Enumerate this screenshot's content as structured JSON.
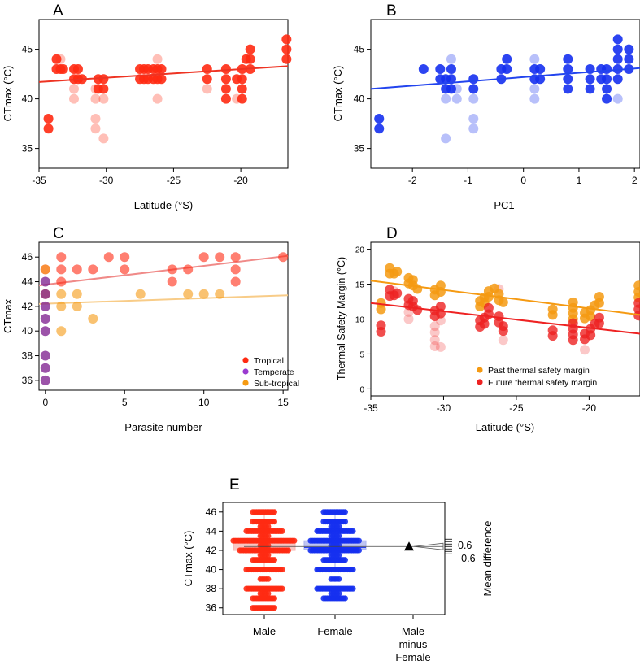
{
  "colors": {
    "tropical": "#ff2a12",
    "temperate": "#7b1a8c",
    "subtropical": "#f59a12",
    "blue": "#1530f0",
    "red_line": "#ee3322",
    "blue_line": "#2244ee",
    "past_margin": "#f59a12",
    "future_margin": "#ee2222",
    "male_box": "#f6b3ad",
    "female_box": "#aab2ee"
  },
  "chart_data": [
    {
      "panel": "A",
      "type": "scatter",
      "xlabel": "Latitude (°S)",
      "ylabel": "CTmax (°C)",
      "xlim": [
        -35,
        -16.5
      ],
      "ylim": [
        33,
        48
      ],
      "xticks": [
        -35,
        -30,
        -25,
        -20
      ],
      "yticks": [
        35,
        40,
        45
      ],
      "trend": [
        [
          -35,
          41.7
        ],
        [
          -16.5,
          43.3
        ]
      ],
      "points_solid": [
        [
          -34.3,
          38
        ],
        [
          -34.3,
          37
        ],
        [
          -33.7,
          44
        ],
        [
          -33.7,
          43
        ],
        [
          -33.4,
          43
        ],
        [
          -33.2,
          43
        ],
        [
          -32.4,
          43
        ],
        [
          -32.4,
          42
        ],
        [
          -32.1,
          43
        ],
        [
          -32.1,
          42
        ],
        [
          -31.8,
          42
        ],
        [
          -30.6,
          42
        ],
        [
          -30.6,
          41
        ],
        [
          -30.2,
          42
        ],
        [
          -30.2,
          41
        ],
        [
          -27.5,
          43
        ],
        [
          -27.5,
          42
        ],
        [
          -27.2,
          43
        ],
        [
          -27.2,
          42
        ],
        [
          -26.9,
          43
        ],
        [
          -26.9,
          42
        ],
        [
          -26.5,
          43
        ],
        [
          -26.5,
          42
        ],
        [
          -26.2,
          43
        ],
        [
          -26.2,
          42
        ],
        [
          -25.9,
          43
        ],
        [
          -25.9,
          42
        ],
        [
          -22.5,
          43
        ],
        [
          -22.5,
          42
        ],
        [
          -21.1,
          43
        ],
        [
          -21.1,
          42
        ],
        [
          -21.1,
          41
        ],
        [
          -21.1,
          40
        ],
        [
          -20.3,
          42
        ],
        [
          -19.9,
          43
        ],
        [
          -19.9,
          42
        ],
        [
          -19.9,
          41
        ],
        [
          -19.9,
          40
        ],
        [
          -19.6,
          44
        ],
        [
          -19.3,
          45
        ],
        [
          -19.3,
          44
        ],
        [
          -19.3,
          43
        ],
        [
          -16.6,
          46
        ],
        [
          -16.6,
          45
        ],
        [
          -16.6,
          44
        ]
      ],
      "points_faded": [
        [
          -33.4,
          44
        ],
        [
          -32.4,
          41
        ],
        [
          -32.4,
          40
        ],
        [
          -30.8,
          41
        ],
        [
          -30.8,
          40
        ],
        [
          -30.8,
          38
        ],
        [
          -30.8,
          37
        ],
        [
          -30.2,
          40
        ],
        [
          -30.2,
          36
        ],
        [
          -26.2,
          44
        ],
        [
          -26.2,
          40
        ],
        [
          -22.5,
          41
        ],
        [
          -20.3,
          40
        ]
      ]
    },
    {
      "panel": "B",
      "type": "scatter",
      "xlabel": "PC1",
      "ylabel": "CTmax (°C)",
      "xlim": [
        -2.75,
        2.1
      ],
      "ylim": [
        33,
        48
      ],
      "xticks": [
        -2,
        -1,
        0,
        1,
        2
      ],
      "yticks": [
        35,
        40,
        45
      ],
      "trend": [
        [
          -2.75,
          41.0
        ],
        [
          2.1,
          43.1
        ]
      ],
      "points_solid": [
        [
          -2.6,
          38
        ],
        [
          -2.6,
          37
        ],
        [
          -1.8,
          43
        ],
        [
          -1.5,
          43
        ],
        [
          -1.5,
          42
        ],
        [
          -1.4,
          42
        ],
        [
          -1.4,
          41
        ],
        [
          -1.3,
          43
        ],
        [
          -1.3,
          42
        ],
        [
          -1.3,
          41
        ],
        [
          -0.9,
          42
        ],
        [
          -0.9,
          41
        ],
        [
          -0.4,
          43
        ],
        [
          -0.4,
          42
        ],
        [
          -0.3,
          44
        ],
        [
          -0.3,
          43
        ],
        [
          0.2,
          43
        ],
        [
          0.2,
          42
        ],
        [
          0.3,
          43
        ],
        [
          0.3,
          42
        ],
        [
          0.8,
          44
        ],
        [
          0.8,
          43
        ],
        [
          0.8,
          42
        ],
        [
          0.8,
          41
        ],
        [
          1.2,
          43
        ],
        [
          1.2,
          42
        ],
        [
          1.2,
          41
        ],
        [
          1.4,
          43
        ],
        [
          1.4,
          42
        ],
        [
          1.5,
          43
        ],
        [
          1.5,
          42
        ],
        [
          1.5,
          41
        ],
        [
          1.5,
          40
        ],
        [
          1.7,
          46
        ],
        [
          1.7,
          45
        ],
        [
          1.7,
          44
        ],
        [
          1.7,
          43
        ],
        [
          1.7,
          42
        ],
        [
          1.9,
          45
        ],
        [
          1.9,
          44
        ],
        [
          1.9,
          43
        ]
      ],
      "points_faded": [
        [
          -1.3,
          44
        ],
        [
          -1.2,
          41
        ],
        [
          -1.2,
          40
        ],
        [
          -0.9,
          40
        ],
        [
          -0.9,
          38
        ],
        [
          -0.9,
          37
        ],
        [
          -1.4,
          40
        ],
        [
          -1.4,
          36
        ],
        [
          0.2,
          44
        ],
        [
          0.2,
          41
        ],
        [
          0.2,
          40
        ],
        [
          1.7,
          40
        ]
      ]
    },
    {
      "panel": "C",
      "type": "scatter",
      "xlabel": "Parasite number",
      "ylabel": "CTmax",
      "xlim": [
        -0.4,
        15.3
      ],
      "ylim": [
        35.2,
        47.2
      ],
      "xticks": [
        0,
        5,
        10,
        15
      ],
      "yticks": [
        36,
        38,
        40,
        42,
        44,
        46
      ],
      "legend_position": "bottom-right",
      "legend": [
        "Tropical",
        "Temperate",
        "Sub-tropical"
      ],
      "trend_tropical": [
        [
          -0.4,
          43.7
        ],
        [
          15.3,
          46.1
        ]
      ],
      "trend_subtropical": [
        [
          -0.4,
          42.2
        ],
        [
          15.3,
          42.9
        ]
      ],
      "tropical": [
        [
          0,
          45
        ],
        [
          1,
          46
        ],
        [
          1,
          45
        ],
        [
          1,
          44
        ],
        [
          2,
          45
        ],
        [
          3,
          45
        ],
        [
          4,
          46
        ],
        [
          5,
          46
        ],
        [
          5,
          45
        ],
        [
          8,
          45
        ],
        [
          8,
          44
        ],
        [
          9,
          45
        ],
        [
          10,
          46
        ],
        [
          11,
          46
        ],
        [
          12,
          46
        ],
        [
          12,
          45
        ],
        [
          12,
          44
        ],
        [
          15,
          46
        ]
      ],
      "temperate": [
        [
          0,
          44
        ],
        [
          0,
          43
        ],
        [
          0,
          42
        ],
        [
          0,
          41
        ],
        [
          0,
          40
        ],
        [
          0,
          38
        ],
        [
          0,
          37
        ],
        [
          0,
          36
        ]
      ],
      "subtropical": [
        [
          0,
          45
        ],
        [
          0,
          43
        ],
        [
          1,
          43
        ],
        [
          1,
          42
        ],
        [
          1,
          40
        ],
        [
          2,
          43
        ],
        [
          2,
          42
        ],
        [
          3,
          41
        ],
        [
          6,
          43
        ],
        [
          9,
          43
        ],
        [
          10,
          43
        ],
        [
          11,
          43
        ]
      ]
    },
    {
      "panel": "D",
      "type": "scatter",
      "xlabel": "Latitude (°S)",
      "ylabel": "Thermal Safety Margin (°C)",
      "xlim": [
        -35,
        -16.5
      ],
      "ylim": [
        -1,
        21
      ],
      "xticks": [
        -35,
        -30,
        -25,
        -20
      ],
      "yticks": [
        0,
        5,
        10,
        15,
        20
      ],
      "legend_position": "bottom-right",
      "legend": [
        "Past thermal safety margin",
        "Future thermal safety margin"
      ],
      "trend_past": [
        [
          -35,
          15.5
        ],
        [
          -16.5,
          10.6
        ]
      ],
      "trend_future": [
        [
          -35,
          12.3
        ],
        [
          -16.5,
          7.9
        ]
      ],
      "past": [
        [
          -34.3,
          12.3
        ],
        [
          -34.3,
          11.4
        ],
        [
          -33.7,
          17.3
        ],
        [
          -33.7,
          16.5
        ],
        [
          -33.4,
          16.5
        ],
        [
          -33.2,
          16.8
        ],
        [
          -32.4,
          15.9
        ],
        [
          -32.4,
          15.1
        ],
        [
          -32.1,
          15.6
        ],
        [
          -32.1,
          14.8
        ],
        [
          -31.8,
          14.3
        ],
        [
          -30.6,
          14.2
        ],
        [
          -30.6,
          13.4
        ],
        [
          -30.2,
          14.8
        ],
        [
          -30.2,
          13.9
        ],
        [
          -27.5,
          12.6
        ],
        [
          -27.5,
          11.8
        ],
        [
          -27.2,
          13.1
        ],
        [
          -27.2,
          12.3
        ],
        [
          -26.9,
          14.0
        ],
        [
          -26.9,
          13.2
        ],
        [
          -26.5,
          14.4
        ],
        [
          -26.2,
          13.6
        ],
        [
          -26.2,
          12.7
        ],
        [
          -25.9,
          12.4
        ],
        [
          -22.5,
          11.4
        ],
        [
          -22.5,
          10.6
        ],
        [
          -21.1,
          12.4
        ],
        [
          -21.1,
          11.6
        ],
        [
          -21.1,
          10.8
        ],
        [
          -21.1,
          10.0
        ],
        [
          -20.3,
          10.9
        ],
        [
          -20.3,
          10.1
        ],
        [
          -19.9,
          11.3
        ],
        [
          -19.9,
          10.4
        ],
        [
          -19.6,
          12.0
        ],
        [
          -19.3,
          13.2
        ],
        [
          -19.3,
          12.3
        ],
        [
          -16.6,
          14.8
        ],
        [
          -16.6,
          13.9
        ],
        [
          -16.6,
          13.1
        ]
      ],
      "future": [
        [
          -34.3,
          9.1
        ],
        [
          -34.3,
          8.2
        ],
        [
          -33.7,
          14.2
        ],
        [
          -33.7,
          13.3
        ],
        [
          -33.4,
          13.4
        ],
        [
          -33.2,
          13.7
        ],
        [
          -32.4,
          12.9
        ],
        [
          -32.4,
          12.0
        ],
        [
          -32.1,
          12.6
        ],
        [
          -32.1,
          11.8
        ],
        [
          -31.8,
          11.3
        ],
        [
          -30.6,
          11.2
        ],
        [
          -30.6,
          10.4
        ],
        [
          -30.2,
          11.8
        ],
        [
          -30.2,
          10.8
        ],
        [
          -27.5,
          9.8
        ],
        [
          -27.5,
          8.9
        ],
        [
          -27.2,
          10.2
        ],
        [
          -27.2,
          9.3
        ],
        [
          -26.9,
          11.6
        ],
        [
          -26.9,
          10.7
        ],
        [
          -26.2,
          10.4
        ],
        [
          -26.2,
          9.5
        ],
        [
          -25.9,
          9.0
        ],
        [
          -25.9,
          8.3
        ],
        [
          -22.5,
          8.4
        ],
        [
          -22.5,
          7.6
        ],
        [
          -21.1,
          9.4
        ],
        [
          -21.1,
          8.6
        ],
        [
          -21.1,
          7.8
        ],
        [
          -21.1,
          7.0
        ],
        [
          -20.3,
          7.9
        ],
        [
          -20.3,
          7.1
        ],
        [
          -19.9,
          8.6
        ],
        [
          -19.9,
          7.7
        ],
        [
          -19.6,
          9.3
        ],
        [
          -19.3,
          10.2
        ],
        [
          -19.3,
          9.4
        ],
        [
          -16.6,
          12.3
        ],
        [
          -16.6,
          11.4
        ],
        [
          -16.6,
          10.5
        ]
      ],
      "faded": [
        [
          -33.4,
          14.0
        ],
        [
          -32.4,
          11.0
        ],
        [
          -32.4,
          10.0
        ],
        [
          -30.6,
          9.0
        ],
        [
          -30.6,
          7.0
        ],
        [
          -30.6,
          6.1
        ],
        [
          -30.2,
          9.8
        ],
        [
          -30.2,
          6.0
        ],
        [
          -25.9,
          7.0
        ],
        [
          -20.3,
          5.6
        ],
        [
          -26.2,
          14.3
        ],
        [
          -30.6,
          8.1
        ]
      ]
    },
    {
      "panel": "E",
      "type": "estimation_plot",
      "ylabel": "CTmax (°C)",
      "right_label": "Mean difference",
      "ylim": [
        35.3,
        47
      ],
      "yticks": [
        36,
        38,
        40,
        42,
        44,
        46
      ],
      "categories": [
        "Male",
        "Female",
        "Male minus Female"
      ],
      "male": {
        "q1": 42,
        "median": 43,
        "q3": 43.1,
        "whisker_low": 40,
        "whisker_high": 46,
        "values": [
          46,
          45,
          44,
          44,
          43,
          43,
          43,
          43,
          42,
          42,
          42,
          41,
          40,
          40,
          38,
          38,
          37,
          36
        ]
      },
      "female": {
        "q1": 42.1,
        "median": 42.3,
        "q3": 43,
        "whisker_low": 40,
        "whisker_high": 46,
        "values": [
          46,
          45,
          44,
          44,
          43,
          43,
          43,
          42,
          42,
          42,
          41,
          40,
          40,
          38,
          38,
          37
        ]
      },
      "mean_difference": 0.0,
      "diff_ticks": [
        0.6,
        -0.6
      ]
    }
  ],
  "panels": {
    "a": "A",
    "b": "B",
    "c": "C",
    "d": "D",
    "e": "E"
  },
  "labels": {
    "a_x": "Latitude (°S)",
    "a_y": "CTmax (°C)",
    "b_x": "PC1",
    "b_y": "CTmax (°C)",
    "c_x": "Parasite number",
    "c_y": "CTmax",
    "d_x": "Latitude (°S)",
    "d_y": "Thermal Safety Margin (°C)",
    "e_y": "CTmax (°C)",
    "e_right": "Mean difference",
    "e_male": "Male",
    "e_female": "Female",
    "e_diff_1": "Male",
    "e_diff_2": "minus",
    "e_diff_3": "Female",
    "e_tick_pos": "0.6",
    "e_tick_neg": "-0.6"
  },
  "legend_c": {
    "tropical": "Tropical",
    "temperate": "Temperate",
    "subtropical": "Sub-tropical"
  },
  "legend_d": {
    "past": "Past thermal safety margin",
    "future": "Future thermal safety margin"
  }
}
